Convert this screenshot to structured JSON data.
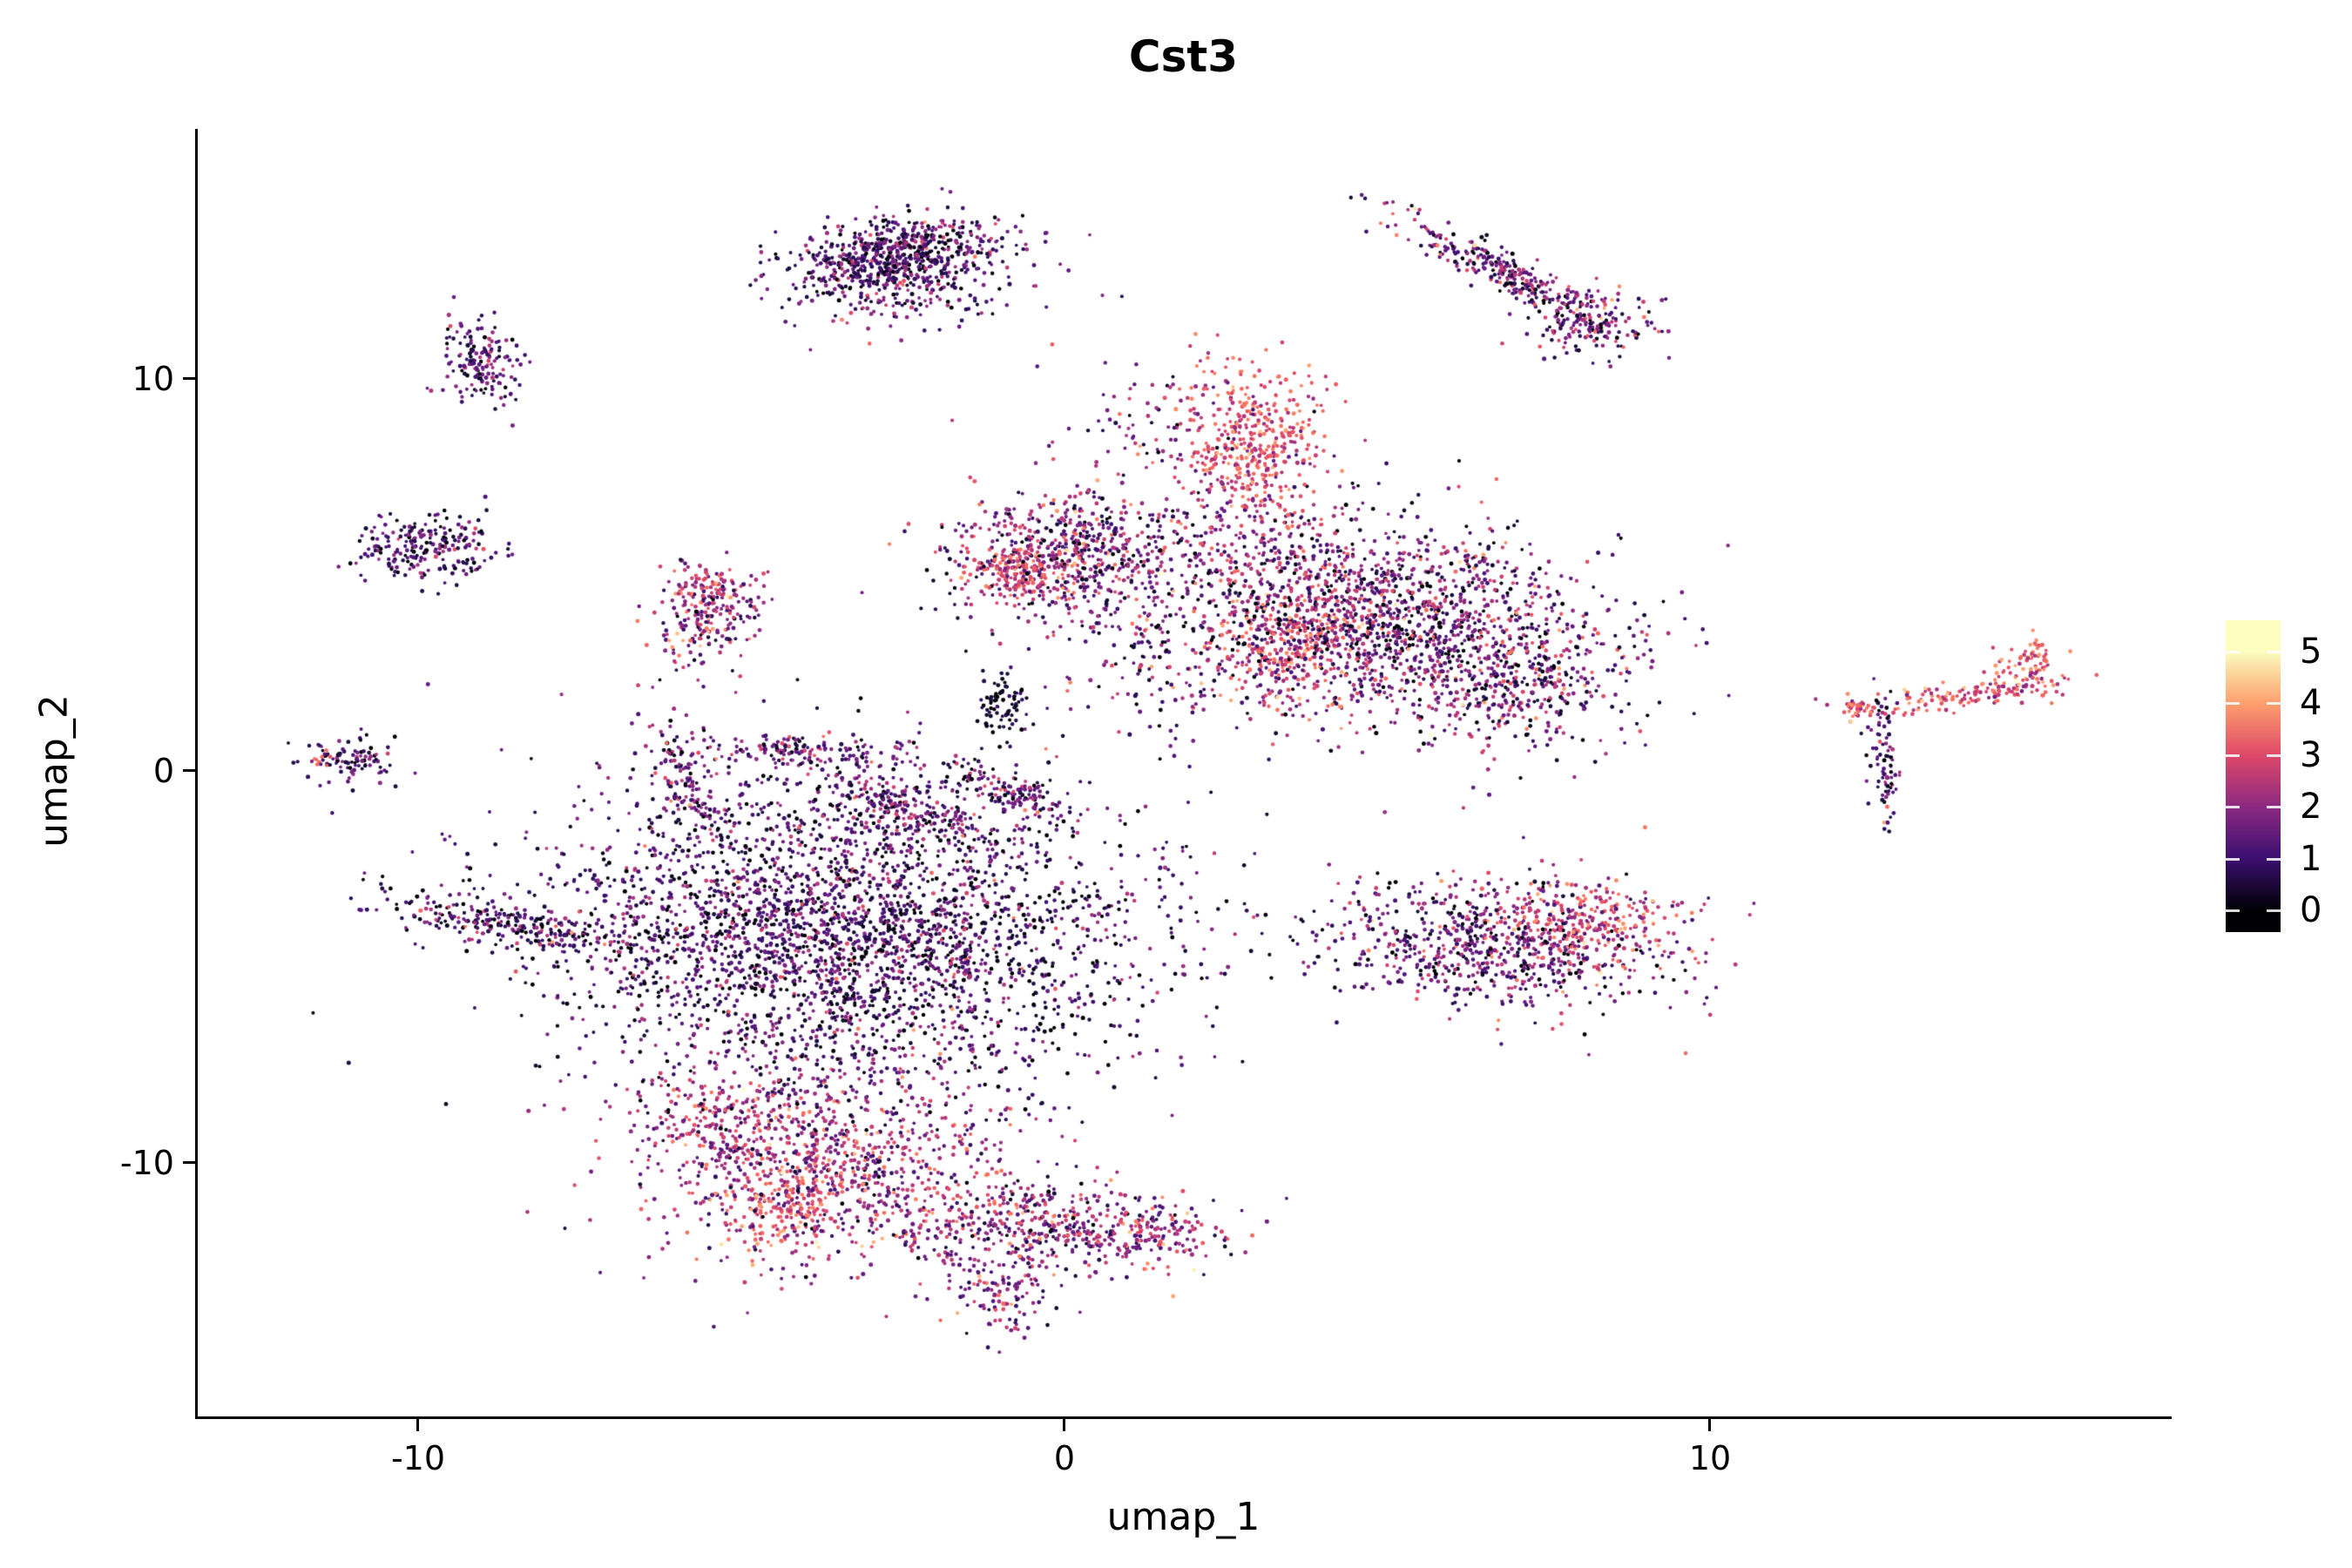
{
  "title": "Cst3",
  "axes": {
    "x": {
      "label": "umap_1",
      "ticks": [
        "-10",
        "0",
        "10"
      ],
      "tick_values": [
        -10,
        0,
        10
      ]
    },
    "y": {
      "label": "umap_2",
      "ticks": [
        "10",
        "0",
        "-10"
      ],
      "tick_values": [
        10,
        0,
        -10
      ]
    }
  },
  "colorbar": {
    "labels": [
      "5",
      "4",
      "3",
      "2",
      "1",
      "0"
    ],
    "values": [
      5,
      4,
      3,
      2,
      1,
      0
    ],
    "top_value": 5.6,
    "bottom_value": -0.42
  },
  "chart_data": {
    "type": "scatter",
    "title": "Cst3",
    "xlabel": "umap_1",
    "ylabel": "umap_2",
    "xlim": [
      -13.4,
      17.1
    ],
    "ylim": [
      -16.4,
      16.4
    ],
    "legend_position": "right",
    "grid": false,
    "color_scale": "continuous gene expression 0-5, magma colormap",
    "point_radius_px": 2.2,
    "seed": 42,
    "colormap": {
      "name": "magma",
      "domain": [
        0,
        5
      ],
      "stops": [
        [
          "0.0",
          "#000004"
        ],
        [
          "0.1",
          "#140E36"
        ],
        [
          "0.2",
          "#3B0F70"
        ],
        [
          "0.3",
          "#641A80"
        ],
        [
          "0.4",
          "#8C2981"
        ],
        [
          "0.5",
          "#B73779"
        ],
        [
          "0.6",
          "#DE4968"
        ],
        [
          "0.7",
          "#F7705C"
        ],
        [
          "0.8",
          "#FE9F6D"
        ],
        [
          "0.9",
          "#FECF92"
        ],
        [
          "1.0",
          "#FCFDBF"
        ]
      ]
    },
    "clusters": [
      {
        "name": "top-center",
        "n": 700,
        "cx": -2.6,
        "cy": 13.1,
        "sx": 0.85,
        "sy": 0.5,
        "rot": 18,
        "e": 1.1,
        "es": 0.9
      },
      {
        "name": "top-center-fringe",
        "n": 120,
        "cx": -2.2,
        "cy": 12.2,
        "sx": 1.0,
        "sy": 0.5,
        "rot": 10,
        "e": 1.4,
        "es": 0.9
      },
      {
        "name": "top-right-arm",
        "n": 300,
        "cx": 6.8,
        "cy": 12.7,
        "sx": 1.0,
        "sy": 0.22,
        "rot": -40,
        "e": 1.4,
        "es": 1.0
      },
      {
        "name": "top-right-end",
        "n": 150,
        "cx": 8.1,
        "cy": 11.5,
        "sx": 0.5,
        "sy": 0.45,
        "rot": 0,
        "e": 1.7,
        "es": 1.0
      },
      {
        "name": "left-upper-small",
        "n": 160,
        "cx": -9.0,
        "cy": 10.4,
        "sx": 0.3,
        "sy": 0.55,
        "rot": 8,
        "e": 1.2,
        "es": 0.8
      },
      {
        "name": "left-mid",
        "n": 220,
        "cx": -9.9,
        "cy": 5.7,
        "sx": 0.55,
        "sy": 0.4,
        "rot": 8,
        "e": 1.0,
        "es": 0.8
      },
      {
        "name": "mid-left-small",
        "n": 200,
        "cx": -5.5,
        "cy": 3.9,
        "sx": 0.4,
        "sy": 0.7,
        "rot": -12,
        "e": 1.9,
        "es": 1.0
      },
      {
        "name": "mid-left-small-hot",
        "n": 70,
        "cx": -5.6,
        "cy": 4.7,
        "sx": 0.3,
        "sy": 0.35,
        "rot": 0,
        "e": 2.7,
        "es": 0.6
      },
      {
        "name": "far-left-tiny",
        "n": 90,
        "cx": -11.0,
        "cy": 0.3,
        "sx": 0.4,
        "sy": 0.28,
        "rot": 0,
        "e": 1.0,
        "es": 0.8
      },
      {
        "name": "far-left-tiny-hot",
        "n": 8,
        "cx": -11.5,
        "cy": 0.25,
        "sx": 0.12,
        "sy": 0.1,
        "rot": 0,
        "e": 3.3,
        "es": 0.3
      },
      {
        "name": "pink-top-blob",
        "n": 420,
        "cx": 2.9,
        "cy": 8.4,
        "sx": 0.55,
        "sy": 1.0,
        "rot": 0,
        "e": 3.0,
        "es": 0.6
      },
      {
        "name": "pink-top-stragglers",
        "n": 150,
        "cx": 2.8,
        "cy": 6.1,
        "sx": 0.55,
        "sy": 1.1,
        "rot": 0,
        "e": 2.2,
        "es": 0.8
      },
      {
        "name": "top-sparse",
        "n": 80,
        "cx": 1.3,
        "cy": 8.8,
        "sx": 0.9,
        "sy": 0.9,
        "rot": 0,
        "e": 1.8,
        "es": 0.9
      },
      {
        "name": "central-lobe",
        "n": 650,
        "cx": 0.1,
        "cy": 5.5,
        "sx": 1.0,
        "sy": 0.85,
        "rot": 0,
        "e": 1.7,
        "es": 1.0
      },
      {
        "name": "central-lobe-hot",
        "n": 140,
        "cx": -0.7,
        "cy": 5.1,
        "sx": 0.35,
        "sy": 0.35,
        "rot": 0,
        "e": 2.9,
        "es": 0.5
      },
      {
        "name": "right-big-lobe",
        "n": 1700,
        "cx": 4.8,
        "cy": 3.9,
        "sx": 1.8,
        "sy": 1.35,
        "rot": -14,
        "e": 1.6,
        "es": 1.1
      },
      {
        "name": "right-big-lobe-hot",
        "n": 240,
        "cx": 3.6,
        "cy": 3.3,
        "sx": 0.5,
        "sy": 0.8,
        "rot": -20,
        "e": 3.0,
        "es": 0.6
      },
      {
        "name": "right-lobe-east",
        "n": 320,
        "cx": 7.0,
        "cy": 2.3,
        "sx": 0.8,
        "sy": 0.85,
        "rot": 0,
        "e": 1.5,
        "es": 1.0
      },
      {
        "name": "dark-spot",
        "n": 80,
        "cx": -1.0,
        "cy": 1.7,
        "sx": 0.2,
        "sy": 0.38,
        "rot": 0,
        "e": 0.3,
        "es": 0.35
      },
      {
        "name": "connector-sparse",
        "n": 120,
        "cx": 1.4,
        "cy": 2.6,
        "sx": 1.1,
        "sy": 0.9,
        "rot": 0,
        "e": 1.4,
        "es": 0.9
      },
      {
        "name": "antenna-arm",
        "n": 140,
        "cx": 14.1,
        "cy": 2.0,
        "sx": 0.8,
        "sy": 0.2,
        "rot": 12,
        "e": 3.1,
        "es": 0.6
      },
      {
        "name": "antenna-left-tip",
        "n": 45,
        "cx": 12.3,
        "cy": 1.6,
        "sx": 0.25,
        "sy": 0.18,
        "rot": 0,
        "e": 3.0,
        "es": 0.6
      },
      {
        "name": "antenna-tail",
        "n": 85,
        "cx": 12.7,
        "cy": 0.2,
        "sx": 0.13,
        "sy": 0.9,
        "rot": 0,
        "e": 1.1,
        "es": 0.9
      },
      {
        "name": "antenna-right-tip",
        "n": 70,
        "cx": 14.9,
        "cy": 2.7,
        "sx": 0.3,
        "sy": 0.35,
        "rot": 0,
        "e": 3.3,
        "es": 0.6
      },
      {
        "name": "right-mid-oval",
        "n": 750,
        "cx": 6.6,
        "cy": -4.4,
        "sx": 1.45,
        "sy": 0.8,
        "rot": -8,
        "e": 1.4,
        "es": 1.0
      },
      {
        "name": "right-mid-oval-hot",
        "n": 260,
        "cx": 8.1,
        "cy": -3.9,
        "sx": 0.7,
        "sy": 0.55,
        "rot": -10,
        "e": 3.0,
        "es": 0.7
      },
      {
        "name": "main-mass",
        "n": 2700,
        "cx": -3.4,
        "cy": -4.3,
        "sx": 2.2,
        "sy": 1.8,
        "rot": -8,
        "e": 1.0,
        "es": 0.9
      },
      {
        "name": "main-mass-halo",
        "n": 320,
        "cx": -4.0,
        "cy": -3.6,
        "sx": 3.1,
        "sy": 2.4,
        "rot": -8,
        "e": 1.0,
        "es": 0.8
      },
      {
        "name": "left-streak",
        "n": 260,
        "cx": -8.7,
        "cy": -3.9,
        "sx": 1.05,
        "sy": 0.26,
        "rot": -16,
        "e": 1.1,
        "es": 0.9
      },
      {
        "name": "arc-a",
        "n": 140,
        "cx": -5.8,
        "cy": -0.4,
        "sx": 0.25,
        "sy": 0.85,
        "rot": 15,
        "e": 1.5,
        "es": 0.9
      },
      {
        "name": "arc-b",
        "n": 150,
        "cx": -4.2,
        "cy": 0.5,
        "sx": 0.85,
        "sy": 0.18,
        "rot": -5,
        "e": 1.5,
        "es": 0.9
      },
      {
        "name": "arc-c",
        "n": 180,
        "cx": -2.5,
        "cy": -0.9,
        "sx": 0.8,
        "sy": 0.25,
        "rot": -35,
        "e": 1.5,
        "es": 0.9
      },
      {
        "name": "arc-d",
        "n": 140,
        "cx": -0.9,
        "cy": -0.5,
        "sx": 0.6,
        "sy": 0.22,
        "rot": -30,
        "e": 1.4,
        "es": 0.9
      },
      {
        "name": "arc-sparse",
        "n": 170,
        "cx": -3.5,
        "cy": -1.3,
        "sx": 1.5,
        "sy": 0.75,
        "rot": 0,
        "e": 1.3,
        "es": 0.9
      },
      {
        "name": "bottom-pink",
        "n": 1000,
        "cx": -3.8,
        "cy": -9.9,
        "sx": 1.35,
        "sy": 1.25,
        "rot": -10,
        "e": 2.1,
        "es": 0.9
      },
      {
        "name": "bottom-pink-hot",
        "n": 140,
        "cx": -4.3,
        "cy": -11.0,
        "sx": 0.4,
        "sy": 0.5,
        "rot": 0,
        "e": 3.3,
        "es": 0.5
      },
      {
        "name": "bottom-pink-upperleft",
        "n": 120,
        "cx": -5.5,
        "cy": -8.8,
        "sx": 0.5,
        "sy": 0.5,
        "rot": 0,
        "e": 2.5,
        "es": 0.7
      },
      {
        "name": "bottom-tail",
        "n": 480,
        "cx": -0.3,
        "cy": -11.6,
        "sx": 1.25,
        "sy": 0.55,
        "rot": -5,
        "e": 1.9,
        "es": 1.0
      },
      {
        "name": "bottom-tail-tip",
        "n": 130,
        "cx": -1.0,
        "cy": -13.2,
        "sx": 0.4,
        "sy": 0.65,
        "rot": 0,
        "e": 1.8,
        "es": 0.9
      },
      {
        "name": "bottom-tail-east",
        "n": 90,
        "cx": 1.5,
        "cy": -11.8,
        "sx": 0.5,
        "sy": 0.3,
        "rot": 0,
        "e": 2.0,
        "es": 0.9
      }
    ]
  }
}
